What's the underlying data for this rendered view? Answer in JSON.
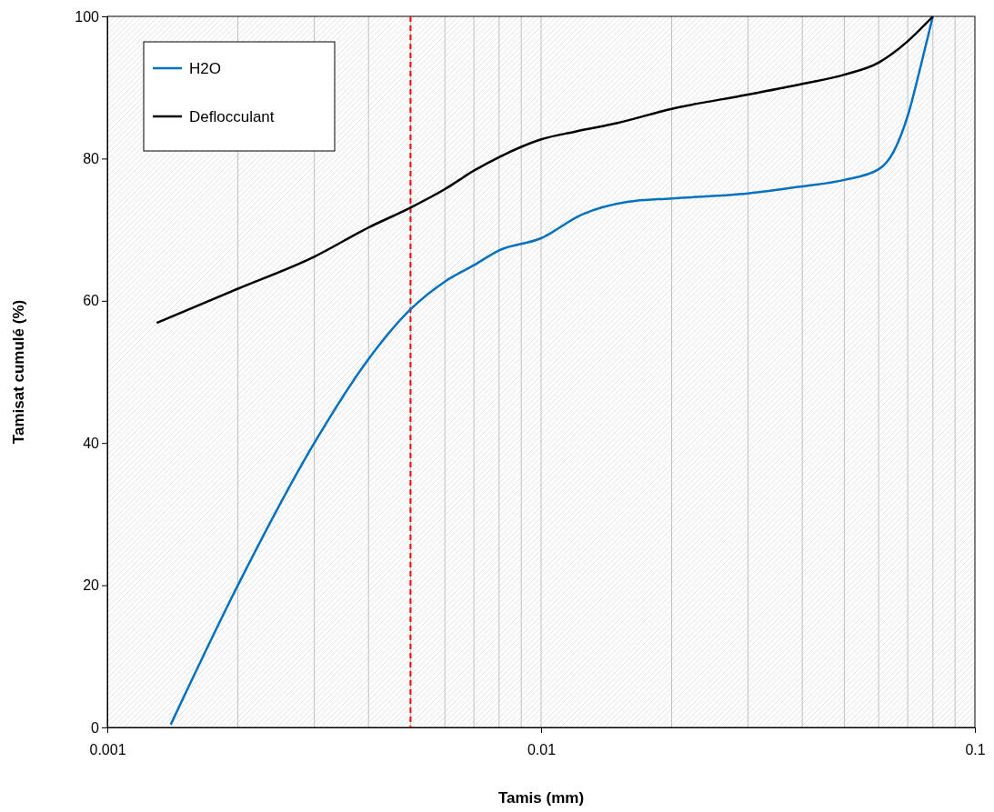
{
  "chart_data": {
    "type": "line",
    "xlabel": "Tamis (mm)",
    "ylabel": "Tamisat cumulé (%)",
    "log": "x",
    "xlim": [
      0.001,
      0.1
    ],
    "xticks": [
      0.001,
      0.01,
      0.1
    ],
    "ylim": [
      0,
      100
    ],
    "yticks": [
      0,
      20,
      40,
      60,
      80,
      100
    ],
    "grid": "x",
    "legend": "top left",
    "marker": "none",
    "line_style": "solid",
    "ref_lines": [
      {
        "axis": "x",
        "value": 0.005,
        "color": "#ff0000",
        "line_style": "dashed"
      }
    ],
    "series": [
      {
        "name": "H2O",
        "color": "#0070c0",
        "x": [
          0.0014,
          0.002,
          0.003,
          0.004,
          0.005,
          0.006,
          0.007,
          0.008,
          0.01,
          0.0124,
          0.0158,
          0.02,
          0.03,
          0.04,
          0.05,
          0.06,
          0.065,
          0.07,
          0.075,
          0.08
        ],
        "values": [
          0.4,
          20,
          40,
          51.8,
          58.8,
          62.7,
          65,
          67.1,
          68.8,
          72.1,
          73.9,
          74.4,
          75.1,
          76.1,
          77,
          78.5,
          81,
          86,
          93,
          100
        ]
      },
      {
        "name": "Deflocculant",
        "color": "#000000",
        "x": [
          0.0013,
          0.002,
          0.003,
          0.004,
          0.005,
          0.006,
          0.007,
          0.008,
          0.01,
          0.012,
          0.015,
          0.02,
          0.03,
          0.04,
          0.05,
          0.06,
          0.07,
          0.08
        ],
        "values": [
          56.9,
          61.7,
          66.2,
          70.3,
          73.1,
          75.7,
          78.3,
          80.2,
          82.7,
          83.8,
          85,
          87,
          89,
          90.5,
          91.8,
          93.5,
          96.5,
          100
        ]
      }
    ]
  }
}
